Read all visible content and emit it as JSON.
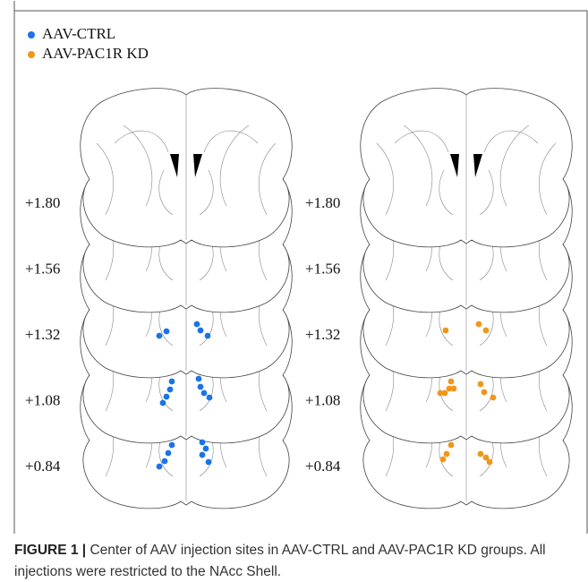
{
  "legend": [
    {
      "label": "AAV-CTRL"
    },
    {
      "label": "AAV-PAC1R KD"
    }
  ],
  "panels": [
    {
      "levels": [
        "+1.80",
        "+1.56",
        "+1.32",
        "+1.08",
        "+0.84"
      ]
    },
    {
      "levels": [
        "+1.80",
        "+1.56",
        "+1.32",
        "+1.08",
        "+0.84"
      ]
    }
  ],
  "caption": {
    "label": "FIGURE 1 |",
    "text": "Center of AAV injection sites in AAV-CTRL and AAV-PAC1R KD groups. All injections were restricted to the NAcc Shell."
  }
}
